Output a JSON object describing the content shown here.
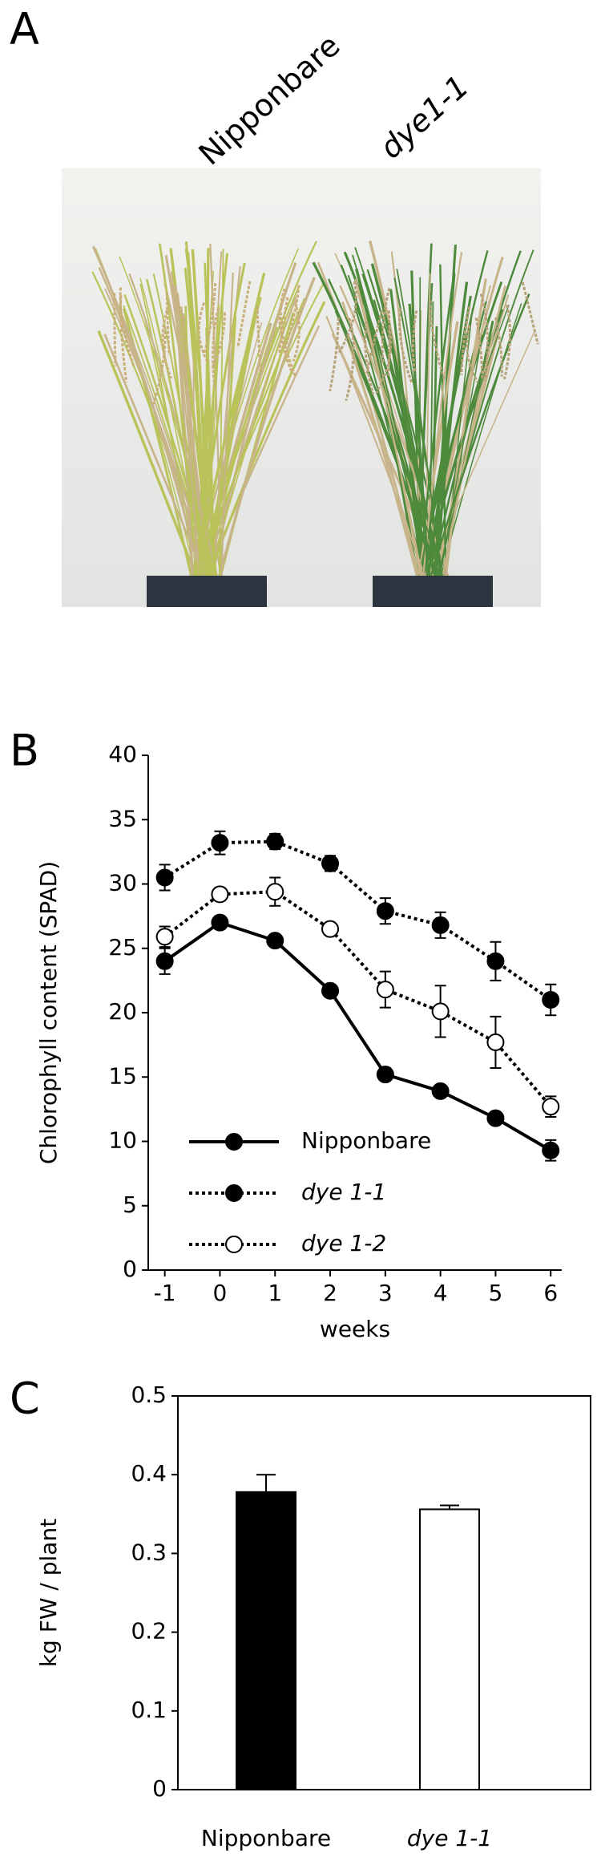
{
  "panel_labels": [
    "A",
    "B",
    "C"
  ],
  "photo": {
    "labels": [
      "Nipponbare",
      "dye1-1"
    ]
  },
  "chart_data": [
    {
      "type": "line",
      "x": [
        -1,
        0,
        1,
        2,
        3,
        4,
        5,
        6
      ],
      "xlim": [
        -1.3,
        6.2
      ],
      "xticks": [
        -1,
        0,
        1,
        2,
        3,
        4,
        5,
        6
      ],
      "ylim": [
        0,
        40
      ],
      "yticks": [
        0,
        5,
        10,
        15,
        20,
        25,
        30,
        35,
        40
      ],
      "xlabel": "weeks",
      "ylabel": "Chlorophyll content (SPAD)",
      "legend": "lower left",
      "series": [
        {
          "name": "Nipponbare",
          "color": "#000000",
          "marker_fill": "#000000",
          "line_style": "solid",
          "values": [
            24,
            27,
            25.6,
            21.7,
            15.2,
            13.9,
            11.8,
            9.3
          ],
          "errors": [
            1,
            0.5,
            0.3,
            0.4,
            0.3,
            0.3,
            0.4,
            0.8
          ]
        },
        {
          "name": "dye 1-1",
          "color": "#000000",
          "marker_fill": "#000000",
          "line_style": "dotted",
          "values": [
            30.5,
            33.2,
            33.3,
            31.6,
            27.9,
            26.8,
            24,
            21
          ],
          "errors": [
            1,
            0.9,
            0.6,
            0.6,
            1,
            1,
            1.5,
            1.2
          ]
        },
        {
          "name": "dye 1-2",
          "color": "#000000",
          "marker_fill": "#ffffff",
          "line_style": "dotted",
          "values": [
            25.9,
            29.2,
            29.4,
            26.5,
            21.8,
            20.1,
            17.7,
            12.7
          ],
          "errors": [
            0.8,
            0.5,
            1.1,
            0.4,
            1.4,
            2,
            2,
            0.8
          ]
        }
      ]
    },
    {
      "type": "bar",
      "categories": [
        "Nipponbare",
        "dye 1-1"
      ],
      "values": [
        0.378,
        0.356
      ],
      "errors": [
        0.022,
        0.005
      ],
      "colors": [
        "#000000",
        "#ffffff"
      ],
      "ylim": [
        0,
        0.5
      ],
      "yticks": [
        0,
        0.1,
        0.2,
        0.3,
        0.4,
        0.5
      ],
      "ylabel": "kg FW / plant"
    }
  ]
}
